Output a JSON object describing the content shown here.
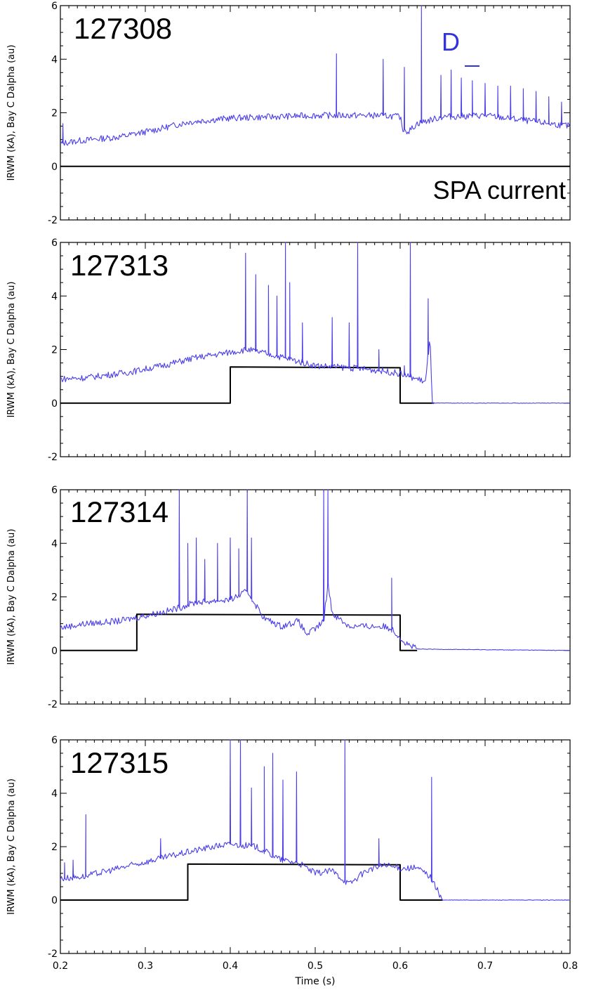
{
  "chart_data": [
    {
      "type": "line",
      "shot_label": "127308",
      "ylabel": "IRWM (kA), Bay C Dalpha (au)",
      "xlim": [
        0.2,
        0.8
      ],
      "ylim": [
        -2,
        6
      ],
      "y_ticks": [
        "-2",
        "0",
        "2",
        "4",
        "6"
      ],
      "annotations": [
        {
          "text": "D",
          "color": "#3333dd"
        },
        {
          "text": "SPA current",
          "color": "#000000"
        }
      ],
      "series": [
        {
          "color": "#000000",
          "x": [
            0.2,
            0.8
          ],
          "y": [
            0,
            0
          ]
        },
        {
          "color": "#4a3ee8",
          "baseline_x": [
            0.2,
            0.22,
            0.27,
            0.31,
            0.35,
            0.4,
            0.45,
            0.5,
            0.55,
            0.58,
            0.6,
            0.603,
            0.61,
            0.62,
            0.65,
            0.7,
            0.75,
            0.8
          ],
          "baseline_y": [
            0.85,
            0.95,
            1.1,
            1.35,
            1.65,
            1.8,
            1.85,
            1.9,
            1.9,
            1.9,
            1.85,
            1.4,
            1.3,
            1.6,
            1.85,
            1.9,
            1.7,
            1.5
          ],
          "spikes_x": [
            0.203,
            0.525,
            0.58,
            0.605,
            0.625,
            0.648,
            0.66,
            0.672,
            0.685,
            0.7,
            0.715,
            0.73,
            0.745,
            0.76,
            0.775,
            0.79
          ],
          "spikes_y": [
            1.6,
            4.2,
            4.0,
            3.7,
            6.0,
            3.4,
            3.6,
            3.3,
            3.2,
            3.1,
            3.0,
            3.0,
            2.9,
            2.8,
            2.6,
            2.4
          ]
        }
      ]
    },
    {
      "type": "line",
      "shot_label": "127313",
      "ylabel": "IRWM (kA), Bay C Dalpha (au)",
      "xlim": [
        0.2,
        0.8
      ],
      "ylim": [
        -2,
        6
      ],
      "y_ticks": [
        "-2",
        "0",
        "2",
        "4",
        "6"
      ],
      "series": [
        {
          "color": "#000000",
          "x": [
            0.2,
            0.4,
            0.4,
            0.6,
            0.6,
            0.64
          ],
          "y": [
            0,
            0,
            1.35,
            1.32,
            0,
            0
          ]
        },
        {
          "color": "#4a3ee8",
          "baseline_x": [
            0.2,
            0.23,
            0.28,
            0.32,
            0.36,
            0.4,
            0.42,
            0.45,
            0.5,
            0.55,
            0.58,
            0.6,
            0.63,
            0.635,
            0.638,
            0.8
          ],
          "baseline_y": [
            0.9,
            0.95,
            1.15,
            1.4,
            1.7,
            1.9,
            2.0,
            1.8,
            1.4,
            1.3,
            1.2,
            1.1,
            0.8,
            2.5,
            0.0,
            0.0
          ],
          "spikes_x": [
            0.418,
            0.43,
            0.445,
            0.455,
            0.465,
            0.47,
            0.485,
            0.52,
            0.54,
            0.55,
            0.575,
            0.605,
            0.612,
            0.633
          ],
          "spikes_y": [
            5.6,
            4.8,
            4.4,
            4.0,
            6.0,
            4.5,
            3.0,
            3.2,
            3.0,
            6.0,
            2.0,
            1.4,
            6.0,
            3.9
          ]
        }
      ]
    },
    {
      "type": "line",
      "shot_label": "127314",
      "ylabel": "IRWM (kA), Bay C Dalpha (au)",
      "xlim": [
        0.2,
        0.8
      ],
      "ylim": [
        -2,
        6
      ],
      "y_ticks": [
        "-2",
        "0",
        "2",
        "4",
        "6"
      ],
      "series": [
        {
          "color": "#000000",
          "x": [
            0.2,
            0.29,
            0.29,
            0.6,
            0.6,
            0.62
          ],
          "y": [
            0,
            0,
            1.35,
            1.32,
            0,
            0
          ]
        },
        {
          "color": "#4a3ee8",
          "baseline_x": [
            0.2,
            0.23,
            0.27,
            0.3,
            0.33,
            0.36,
            0.4,
            0.42,
            0.44,
            0.46,
            0.48,
            0.49,
            0.5,
            0.51,
            0.515,
            0.52,
            0.54,
            0.56,
            0.58,
            0.59,
            0.6,
            0.605,
            0.62,
            0.8
          ],
          "baseline_y": [
            0.85,
            1.0,
            1.1,
            1.3,
            1.5,
            1.8,
            1.9,
            2.2,
            1.2,
            0.9,
            1.1,
            0.6,
            0.8,
            1.1,
            2.5,
            1.4,
            0.9,
            0.9,
            0.9,
            0.8,
            0.5,
            0.3,
            0.05,
            0.0
          ],
          "spikes_x": [
            0.34,
            0.35,
            0.36,
            0.37,
            0.385,
            0.4,
            0.41,
            0.42,
            0.425,
            0.51,
            0.515,
            0.59
          ],
          "spikes_y": [
            6.0,
            4.0,
            4.2,
            3.4,
            4.0,
            4.2,
            3.8,
            6.0,
            4.2,
            6.0,
            6.0,
            2.7
          ]
        }
      ]
    },
    {
      "type": "line",
      "shot_label": "127315",
      "ylabel": "IRWM (kA), Bay C Dalpha (au)",
      "xlabel": "Time (s)",
      "xlim": [
        0.2,
        0.8
      ],
      "ylim": [
        -2,
        6
      ],
      "x_ticks": [
        "0.2",
        "0.3",
        "0.4",
        "0.5",
        "0.6",
        "0.7",
        "0.8"
      ],
      "y_ticks": [
        "-2",
        "0",
        "2",
        "4",
        "6"
      ],
      "series": [
        {
          "color": "#000000",
          "x": [
            0.2,
            0.35,
            0.35,
            0.6,
            0.6,
            0.65
          ],
          "y": [
            0,
            0,
            1.35,
            1.32,
            0,
            0
          ]
        },
        {
          "color": "#4a3ee8",
          "baseline_x": [
            0.2,
            0.23,
            0.27,
            0.31,
            0.35,
            0.38,
            0.4,
            0.43,
            0.46,
            0.48,
            0.5,
            0.52,
            0.54,
            0.56,
            0.58,
            0.6,
            0.62,
            0.635,
            0.645,
            0.65,
            0.8
          ],
          "baseline_y": [
            0.8,
            0.9,
            1.2,
            1.5,
            1.8,
            2.0,
            2.1,
            2.0,
            1.5,
            1.4,
            1.0,
            1.1,
            0.6,
            1.1,
            1.3,
            1.2,
            1.2,
            0.9,
            0.3,
            0.0,
            0.0
          ],
          "spikes_x": [
            0.205,
            0.215,
            0.23,
            0.318,
            0.4,
            0.412,
            0.425,
            0.44,
            0.45,
            0.462,
            0.478,
            0.535,
            0.575,
            0.637
          ],
          "spikes_y": [
            1.4,
            1.5,
            3.2,
            2.3,
            6.0,
            6.0,
            4.2,
            5.0,
            5.5,
            4.5,
            4.8,
            6.0,
            2.3,
            4.6
          ]
        }
      ]
    }
  ]
}
